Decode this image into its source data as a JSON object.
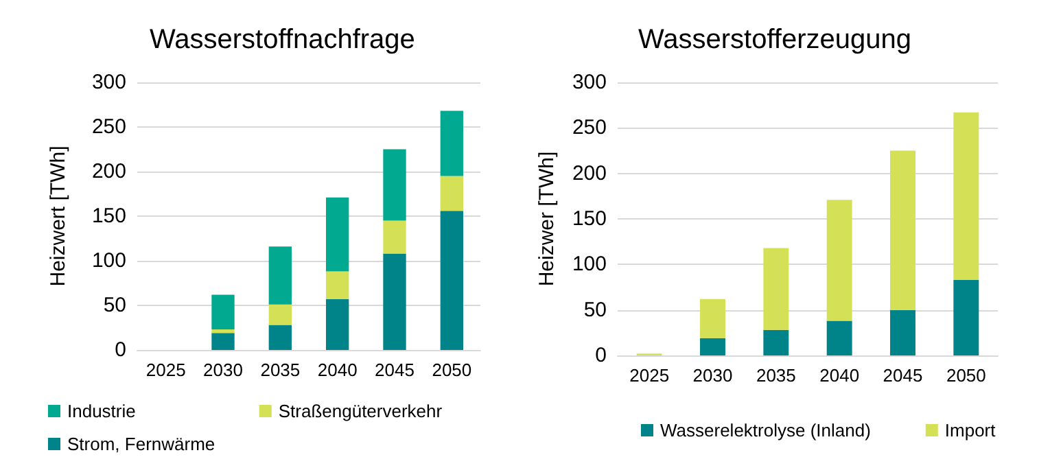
{
  "chart_data": [
    {
      "type": "bar",
      "title": "Wasserstoffnachfrage",
      "ylabel": "Heizwert [TWh]",
      "categories": [
        "2025",
        "2030",
        "2035",
        "2040",
        "2045",
        "2050"
      ],
      "stacked": true,
      "series": [
        {
          "name": "Strom, Fernwärme",
          "color": "#00848a",
          "values": [
            0,
            19,
            28,
            57,
            108,
            156
          ]
        },
        {
          "name": "Straßengüterverkehr",
          "color": "#d4e157",
          "values": [
            0,
            4,
            23,
            31,
            37,
            39
          ]
        },
        {
          "name": "Industrie",
          "color": "#00a990",
          "values": [
            0,
            39,
            65,
            83,
            80,
            73
          ]
        }
      ],
      "ylim": [
        0,
        300
      ],
      "yticks": [
        0,
        50,
        100,
        150,
        200,
        250,
        300
      ],
      "grid": "y",
      "legend": "bottom"
    },
    {
      "type": "bar",
      "title": "Wasserstofferzeugung",
      "ylabel": "Heizwer [TWh]",
      "categories": [
        "2025",
        "2030",
        "2035",
        "2040",
        "2045",
        "2050"
      ],
      "stacked": true,
      "series": [
        {
          "name": "Wasserelektrolyse (Inland)",
          "color": "#00848a",
          "values": [
            0,
            19,
            28,
            38,
            50,
            83
          ]
        },
        {
          "name": "Import",
          "color": "#d4e157",
          "values": [
            2,
            43,
            90,
            133,
            175,
            184
          ]
        }
      ],
      "ylim": [
        0,
        300
      ],
      "yticks": [
        0,
        50,
        100,
        150,
        200,
        250,
        300
      ],
      "grid": "y",
      "legend": "bottom"
    }
  ]
}
